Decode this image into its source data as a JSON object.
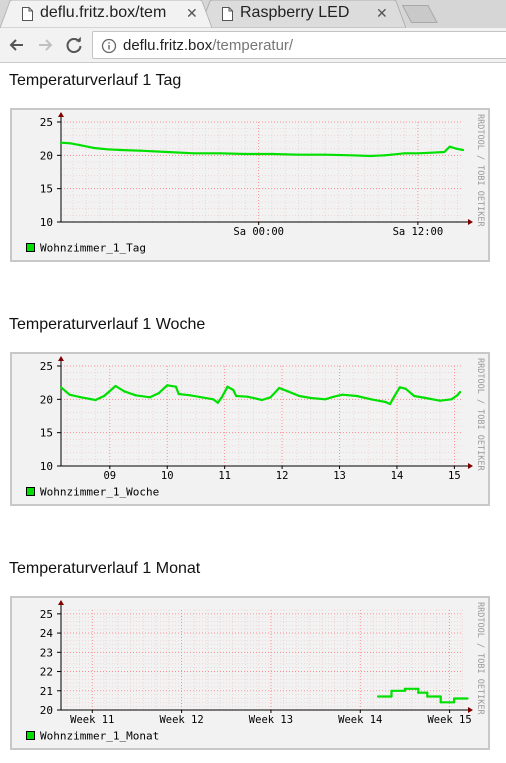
{
  "browser": {
    "tabs": [
      {
        "title": "deflu.fritz.box/tem",
        "active": true
      },
      {
        "title": "Raspberry LED",
        "active": false
      }
    ],
    "close_glyph": "✕",
    "url_host": "deflu.fritz.box",
    "url_path": "/temperatur/"
  },
  "colors": {
    "series": "#00e000",
    "grid": "#ff8080",
    "axis": "#800000",
    "panel": "#f2f2f2"
  },
  "watermark": "RRDTOOL / TOBI OETIKER",
  "charts": [
    {
      "title": "Temperaturverlauf 1 Tag",
      "legend": "Wohnzimmer_1_Tag",
      "chart_data": {
        "type": "line",
        "ylim": [
          10,
          25
        ],
        "yticks": [
          "25",
          "20",
          "15",
          "10"
        ],
        "x_range_hours": [
          -14.9,
          15.4
        ],
        "xticks": [
          {
            "label": "Sa 00:00",
            "x": 0
          },
          {
            "label": "Sa 12:00",
            "x": 12
          }
        ],
        "series": [
          {
            "name": "Wohnzimmer_1_Tag",
            "points": [
              [
                -14.9,
                21.9
              ],
              [
                -14.2,
                21.8
              ],
              [
                -13.4,
                21.5
              ],
              [
                -12.4,
                21.1
              ],
              [
                -11.4,
                20.9
              ],
              [
                -10.4,
                20.8
              ],
              [
                -8.9,
                20.7
              ],
              [
                -6.9,
                20.5
              ],
              [
                -4.9,
                20.3
              ],
              [
                -2.9,
                20.3
              ],
              [
                -1.0,
                20.2
              ],
              [
                1.0,
                20.2
              ],
              [
                3.0,
                20.1
              ],
              [
                5.0,
                20.1
              ],
              [
                7.0,
                20.0
              ],
              [
                8.4,
                19.9
              ],
              [
                9.5,
                20.0
              ],
              [
                10.0,
                20.1
              ],
              [
                11.0,
                20.3
              ],
              [
                12.0,
                20.3
              ],
              [
                13.0,
                20.4
              ],
              [
                14.0,
                20.5
              ],
              [
                14.4,
                21.3
              ],
              [
                14.9,
                21.0
              ],
              [
                15.4,
                20.8
              ]
            ]
          }
        ]
      }
    },
    {
      "title": "Temperaturverlauf 1 Woche",
      "legend": "Wohnzimmer_1_Woche",
      "chart_data": {
        "type": "line",
        "ylim": [
          10,
          25
        ],
        "yticks": [
          "25",
          "20",
          "15",
          "10"
        ],
        "x_range_days": [
          8.15,
          15.15
        ],
        "xticks": [
          {
            "label": "09",
            "x": 9
          },
          {
            "label": "10",
            "x": 10
          },
          {
            "label": "11",
            "x": 11
          },
          {
            "label": "12",
            "x": 12
          },
          {
            "label": "13",
            "x": 13
          },
          {
            "label": "14",
            "x": 14
          },
          {
            "label": "15",
            "x": 15
          }
        ],
        "series": [
          {
            "name": "Wohnzimmer_1_Woche",
            "points": [
              [
                8.15,
                21.8
              ],
              [
                8.3,
                20.7
              ],
              [
                8.5,
                20.3
              ],
              [
                8.75,
                19.9
              ],
              [
                8.9,
                20.5
              ],
              [
                9.1,
                22.0
              ],
              [
                9.25,
                21.2
              ],
              [
                9.45,
                20.6
              ],
              [
                9.7,
                20.3
              ],
              [
                9.85,
                20.9
              ],
              [
                10.0,
                22.1
              ],
              [
                10.15,
                21.9
              ],
              [
                10.2,
                20.8
              ],
              [
                10.4,
                20.6
              ],
              [
                10.6,
                20.3
              ],
              [
                10.8,
                20.0
              ],
              [
                10.88,
                19.5
              ],
              [
                10.95,
                20.3
              ],
              [
                11.05,
                21.9
              ],
              [
                11.15,
                21.4
              ],
              [
                11.2,
                20.5
              ],
              [
                11.4,
                20.4
              ],
              [
                11.65,
                19.9
              ],
              [
                11.8,
                20.3
              ],
              [
                11.95,
                21.7
              ],
              [
                12.1,
                21.2
              ],
              [
                12.3,
                20.5
              ],
              [
                12.5,
                20.2
              ],
              [
                12.75,
                20.0
              ],
              [
                12.9,
                20.4
              ],
              [
                13.05,
                20.7
              ],
              [
                13.3,
                20.5
              ],
              [
                13.55,
                20.0
              ],
              [
                13.8,
                19.6
              ],
              [
                13.88,
                19.3
              ],
              [
                13.95,
                20.4
              ],
              [
                14.05,
                21.8
              ],
              [
                14.15,
                21.6
              ],
              [
                14.3,
                20.5
              ],
              [
                14.5,
                20.2
              ],
              [
                14.75,
                19.8
              ],
              [
                14.95,
                20.0
              ],
              [
                15.05,
                20.6
              ],
              [
                15.1,
                21.1
              ]
            ]
          }
        ]
      }
    },
    {
      "title": "Temperaturverlauf 1 Monat",
      "legend": "Wohnzimmer_1_Monat",
      "chart_data": {
        "type": "line",
        "ylim": [
          20,
          25.2
        ],
        "yticks": [
          "25",
          "24",
          "23",
          "22",
          "21",
          "20"
        ],
        "x_range_weeks": [
          10.65,
          15.15
        ],
        "xticks": [
          {
            "label": "Week 11",
            "x": 11
          },
          {
            "label": "Week 12",
            "x": 12
          },
          {
            "label": "Week 13",
            "x": 13
          },
          {
            "label": "Week 14",
            "x": 14
          },
          {
            "label": "Week 15",
            "x": 15
          }
        ],
        "series": [
          {
            "name": "Wohnzimmer_1_Monat",
            "points": [
              [
                14.2,
                20.7
              ],
              [
                14.35,
                20.7
              ],
              [
                14.35,
                21.0
              ],
              [
                14.5,
                21.0
              ],
              [
                14.5,
                21.1
              ],
              [
                14.65,
                21.1
              ],
              [
                14.65,
                20.9
              ],
              [
                14.75,
                20.9
              ],
              [
                14.75,
                20.7
              ],
              [
                14.9,
                20.7
              ],
              [
                14.9,
                20.4
              ],
              [
                15.05,
                20.4
              ],
              [
                15.05,
                20.6
              ],
              [
                15.2,
                20.6
              ]
            ]
          }
        ]
      }
    }
  ]
}
